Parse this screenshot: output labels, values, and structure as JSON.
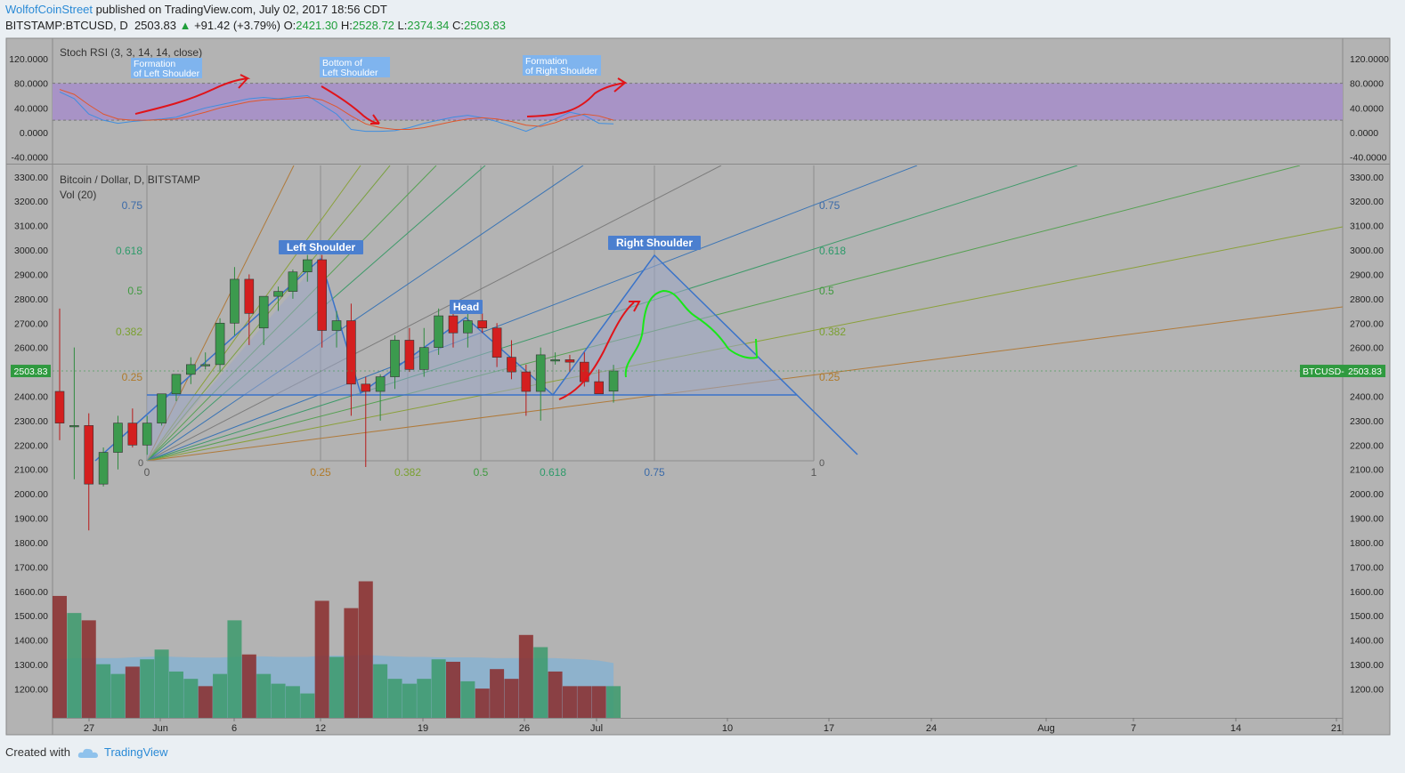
{
  "header": {
    "author": "WolfofCoinStreet",
    "published": "published on TradingView.com, July 02, 2017 18:56 CDT",
    "symbol": "BITSTAMP:BTCUSD, D",
    "last": "2503.83",
    "change": "+91.42 (+3.79%)",
    "o_label": "O:",
    "o": "2421.30",
    "h_label": "H:",
    "h": "2528.72",
    "l_label": "L:",
    "l": "2374.34",
    "c_label": "C:",
    "c": "2503.83"
  },
  "footer": {
    "created": "Created with",
    "brand": "TradingView"
  },
  "colors": {
    "bg": "#b3b3b3",
    "up": "#3c9a4e",
    "down": "#d41f1f",
    "rsiBand": "#a893c6",
    "trend": "#3a73c9",
    "page": "#eaeff3"
  },
  "chart_data": [
    {
      "type": "line",
      "title": "Stoch RSI (3, 3, 14, 14, close)",
      "ylim": [
        -40,
        120
      ],
      "yticks": [
        "120.0000",
        "80.0000",
        "40.0000",
        "0.0000",
        "-40.0000"
      ],
      "band": [
        20,
        80
      ],
      "series": [
        {
          "values": [
            66,
            55,
            30,
            20,
            15,
            18,
            20,
            22,
            25,
            33,
            40,
            45,
            50,
            55,
            57,
            55,
            58,
            60,
            45,
            30,
            5,
            2,
            2,
            3,
            8,
            15,
            20,
            25,
            28,
            24,
            18,
            10,
            2,
            12,
            22,
            33,
            28,
            15,
            14
          ]
        },
        {
          "values": [
            70,
            62,
            45,
            30,
            22,
            20,
            20,
            21,
            22,
            27,
            33,
            40,
            45,
            50,
            53,
            54,
            55,
            57,
            53,
            42,
            27,
            14,
            8,
            5,
            5,
            8,
            13,
            18,
            22,
            24,
            22,
            18,
            12,
            10,
            16,
            25,
            30,
            27,
            20
          ]
        }
      ],
      "annotations": [
        "Formation of Left Shoulder",
        "Bottom of Left Shoulder",
        "Formation of Right Shoulder"
      ]
    },
    {
      "type": "candlestick",
      "title": "Bitcoin / Dollar, D, BITSTAMP",
      "vol_label": "Vol (20)",
      "ylim": [
        1100,
        3350
      ],
      "yticks": [
        "3300.00",
        "3200.00",
        "3100.00",
        "3000.00",
        "2900.00",
        "2800.00",
        "2700.00",
        "2600.00",
        "2500.00",
        "2400.00",
        "2300.00",
        "2200.00",
        "2100.00",
        "2000.00",
        "1900.00",
        "1800.00",
        "1700.00",
        "1600.00",
        "1500.00",
        "1400.00",
        "1300.00",
        "1200.00"
      ],
      "xticks": [
        "27",
        "Jun",
        "6",
        "12",
        "19",
        "26",
        "Jul",
        "10",
        "17",
        "24",
        "Aug",
        "7",
        "14",
        "21"
      ],
      "last_price_label": "2503.83",
      "last_tag_label": "BTCUSD",
      "candles": [
        [
          2420,
          2760,
          2220,
          2290
        ],
        [
          2280,
          2600,
          2060,
          2280
        ],
        [
          2280,
          2330,
          1850,
          2040
        ],
        [
          2040,
          2190,
          2030,
          2170
        ],
        [
          2170,
          2320,
          2100,
          2290
        ],
        [
          2290,
          2350,
          2190,
          2200
        ],
        [
          2200,
          2320,
          2160,
          2290
        ],
        [
          2290,
          2400,
          2280,
          2410
        ],
        [
          2410,
          2480,
          2380,
          2490
        ],
        [
          2490,
          2560,
          2450,
          2530
        ],
        [
          2530,
          2580,
          2510,
          2530
        ],
        [
          2530,
          2720,
          2500,
          2700
        ],
        [
          2700,
          2930,
          2650,
          2880
        ],
        [
          2880,
          2900,
          2610,
          2740
        ],
        [
          2680,
          2800,
          2610,
          2810
        ],
        [
          2810,
          2850,
          2750,
          2830
        ],
        [
          2830,
          2920,
          2800,
          2910
        ],
        [
          2910,
          2980,
          2870,
          2960
        ],
        [
          2960,
          2980,
          2600,
          2670
        ],
        [
          2670,
          2750,
          2600,
          2710
        ],
        [
          2710,
          2780,
          2320,
          2450
        ],
        [
          2450,
          2480,
          2110,
          2420
        ],
        [
          2420,
          2490,
          2300,
          2480
        ],
        [
          2480,
          2650,
          2430,
          2630
        ],
        [
          2630,
          2680,
          2500,
          2510
        ],
        [
          2510,
          2680,
          2480,
          2600
        ],
        [
          2600,
          2760,
          2570,
          2730
        ],
        [
          2730,
          2760,
          2600,
          2660
        ],
        [
          2660,
          2740,
          2600,
          2710
        ],
        [
          2710,
          2740,
          2660,
          2680
        ],
        [
          2680,
          2700,
          2520,
          2560
        ],
        [
          2560,
          2630,
          2470,
          2500
        ],
        [
          2500,
          2530,
          2320,
          2420
        ],
        [
          2420,
          2600,
          2300,
          2570
        ],
        [
          2550,
          2580,
          2530,
          2550
        ],
        [
          2550,
          2570,
          2500,
          2540
        ],
        [
          2540,
          2580,
          2440,
          2460
        ],
        [
          2460,
          2510,
          2430,
          2410
        ],
        [
          2421,
          2529,
          2374,
          2504
        ]
      ],
      "volume": [
        [
          1600,
          "d"
        ],
        [
          1530,
          "u"
        ],
        [
          1500,
          "d"
        ],
        [
          1320,
          "u"
        ],
        [
          1280,
          "u"
        ],
        [
          1310,
          "d"
        ],
        [
          1340,
          "u"
        ],
        [
          1380,
          "u"
        ],
        [
          1290,
          "u"
        ],
        [
          1260,
          "u"
        ],
        [
          1230,
          "d"
        ],
        [
          1280,
          "u"
        ],
        [
          1500,
          "u"
        ],
        [
          1360,
          "d"
        ],
        [
          1280,
          "u"
        ],
        [
          1240,
          "u"
        ],
        [
          1230,
          "u"
        ],
        [
          1200,
          "u"
        ],
        [
          1580,
          "d"
        ],
        [
          1350,
          "u"
        ],
        [
          1550,
          "d"
        ],
        [
          1660,
          "d"
        ],
        [
          1320,
          "u"
        ],
        [
          1260,
          "u"
        ],
        [
          1240,
          "u"
        ],
        [
          1260,
          "u"
        ],
        [
          1340,
          "u"
        ],
        [
          1330,
          "d"
        ],
        [
          1250,
          "u"
        ],
        [
          1220,
          "d"
        ],
        [
          1300,
          "d"
        ],
        [
          1260,
          "d"
        ],
        [
          1440,
          "d"
        ],
        [
          1390,
          "u"
        ],
        [
          1290,
          "d"
        ],
        [
          1230,
          "d"
        ],
        [
          1230,
          "d"
        ],
        [
          1230,
          "d"
        ],
        [
          1230,
          "u"
        ]
      ],
      "vol_ma": [
        1340,
        1345,
        1345,
        1345,
        1345,
        1348,
        1350,
        1352,
        1350,
        1348,
        1347,
        1347,
        1350,
        1352,
        1352,
        1350,
        1350,
        1350,
        1355,
        1355,
        1355,
        1358,
        1355,
        1352,
        1350,
        1350,
        1348,
        1348,
        1348,
        1347,
        1345,
        1345,
        1345,
        1345,
        1345,
        1342,
        1340,
        1335,
        1325
      ],
      "fib_levels": [
        "0.75",
        "0.618",
        "0.5",
        "0.382",
        "0.25"
      ],
      "fib_time": [
        "0",
        "0.25",
        "0.382",
        "0.5",
        "0.618",
        "0.75",
        "1"
      ],
      "annotations": [
        "Left Shoulder",
        "Head",
        "Right Shoulder"
      ]
    }
  ]
}
